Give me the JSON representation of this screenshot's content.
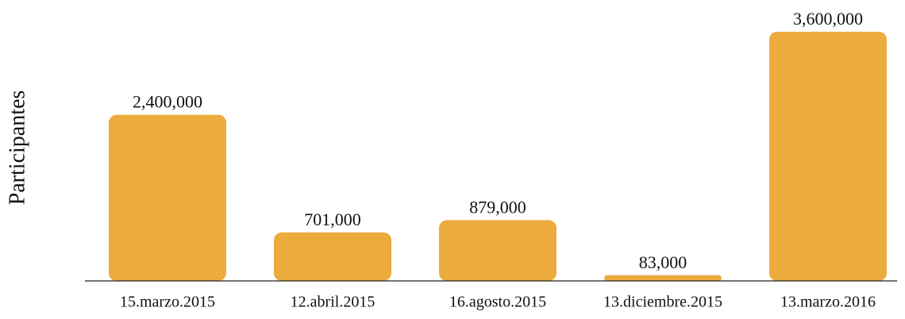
{
  "chart_data": {
    "type": "bar",
    "y_label": "Participantes",
    "categories": [
      "15.marzo.2015",
      "12.abril.2015",
      "16.agosto.2015",
      "13.diciembre.2015",
      "13.marzo.2016"
    ],
    "values": [
      2400000,
      701000,
      879000,
      83000,
      3600000
    ],
    "value_labels": [
      "2,400,000",
      "701,000",
      "879,000",
      "83,000",
      "3,600,000"
    ],
    "color": "#ecab3d",
    "ylim": [
      0,
      3600000
    ]
  }
}
